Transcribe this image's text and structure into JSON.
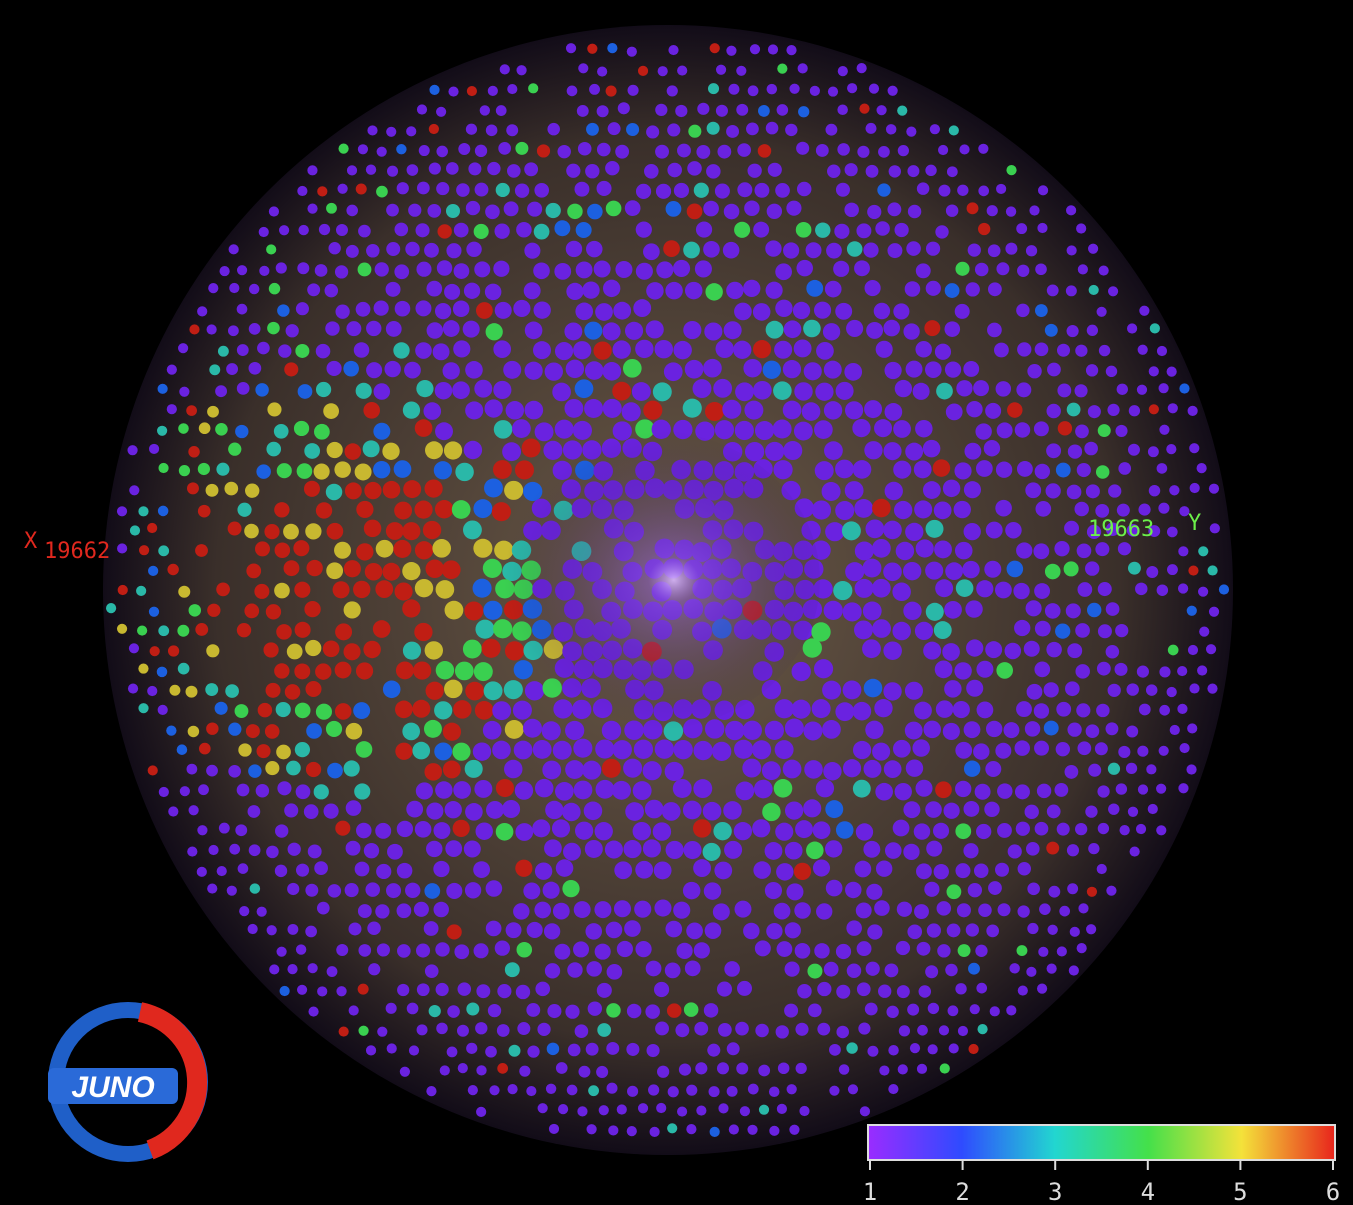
{
  "axes": {
    "x_label": "X",
    "x_value": "19662",
    "y_label": "Y",
    "y_value": "19663"
  },
  "logo": "JUNO",
  "colorbar": {
    "ticks": [
      1,
      2,
      3,
      4,
      5,
      6
    ]
  }
}
